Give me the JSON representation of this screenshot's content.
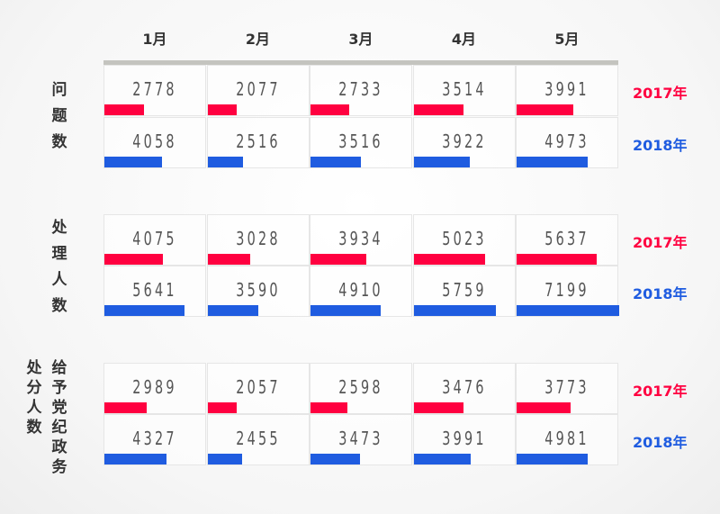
{
  "chart_data": {
    "type": "table",
    "categories": [
      "1月",
      "2月",
      "3月",
      "4月",
      "5月"
    ],
    "colors": {
      "2017": "#ff0040",
      "2018": "#1f5ce0"
    },
    "groups": [
      {
        "label": "问题数",
        "label_lines": [
          "问题数"
        ],
        "series": [
          {
            "name": "2017年",
            "values": [
              2778,
              2077,
              2733,
              3514,
              3991
            ]
          },
          {
            "name": "2018年",
            "values": [
              4058,
              2516,
              3516,
              3922,
              4973
            ]
          }
        ]
      },
      {
        "label": "处理人数",
        "label_lines": [
          "处理人数"
        ],
        "series": [
          {
            "name": "2017年",
            "values": [
              4075,
              3028,
              3934,
              5023,
              5637
            ]
          },
          {
            "name": "2018年",
            "values": [
              5641,
              3590,
              4910,
              5759,
              7199
            ]
          }
        ]
      },
      {
        "label": "给予党纪政务处分人数",
        "label_lines": [
          "处分人数",
          "给予党纪政务"
        ],
        "series": [
          {
            "name": "2017年",
            "values": [
              2989,
              2057,
              2598,
              3476,
              3773
            ]
          },
          {
            "name": "2018年",
            "values": [
              4327,
              2455,
              3473,
              3991,
              4981
            ]
          }
        ]
      }
    ],
    "bar_scale_max": 7199
  }
}
